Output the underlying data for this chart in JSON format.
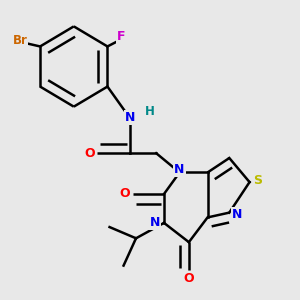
{
  "background_color": "#e8e8e8",
  "atom_colors": {
    "Br": "#cc6600",
    "F": "#cc00cc",
    "N": "#0000ee",
    "O": "#ff0000",
    "S": "#bbbb00",
    "H": "#008888",
    "C": "#000000"
  },
  "bond_color": "#000000",
  "bond_width": 1.8,
  "figsize": [
    3.0,
    3.0
  ],
  "dpi": 100
}
